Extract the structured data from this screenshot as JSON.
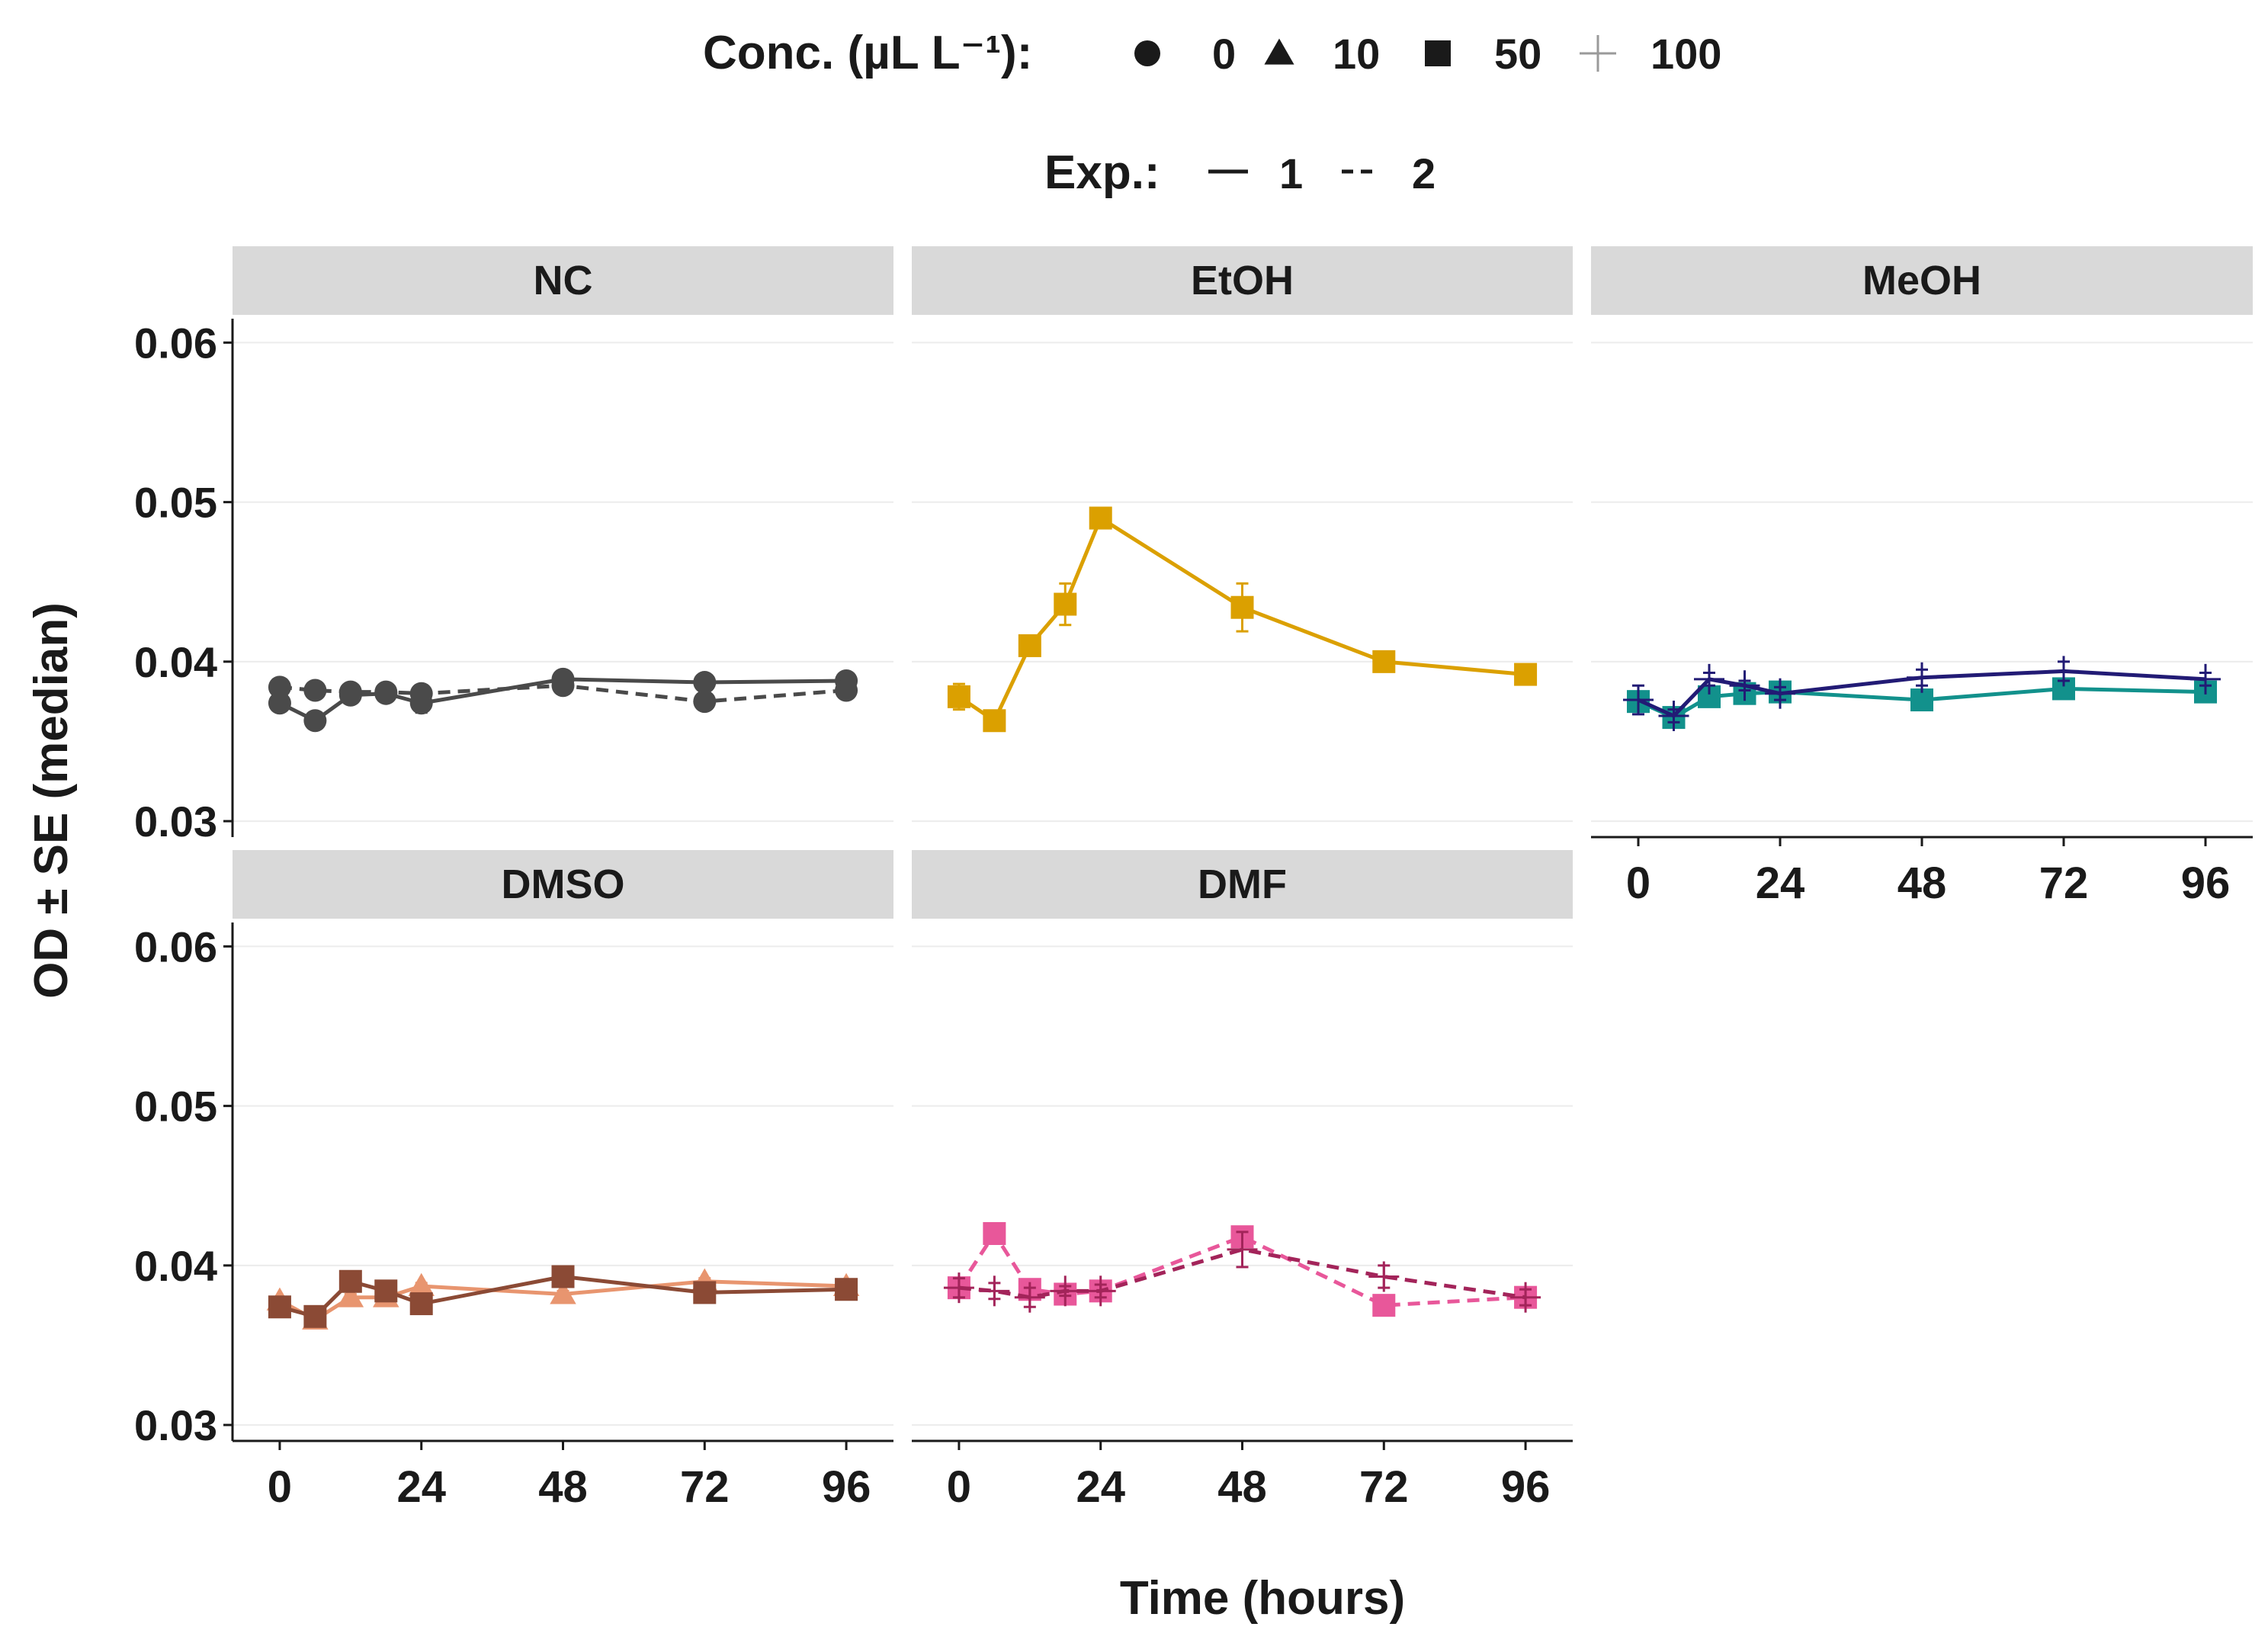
{
  "chart_data": {
    "type": "line",
    "ylabel": "OD ± SE (median)",
    "xlabel": "Time (hours)",
    "xlim": [
      -8,
      104
    ],
    "ylim": [
      0.029,
      0.0615
    ],
    "xticks": [
      0,
      24,
      48,
      72,
      96
    ],
    "xtick_labels": [
      "0",
      "24",
      "48",
      "72",
      "96"
    ],
    "yticks": [
      0.03,
      0.04,
      0.05,
      0.06
    ],
    "ytick_labels": [
      "0.03",
      "0.04",
      "0.05",
      "0.06"
    ],
    "legend": {
      "position": "top",
      "conc_title": "Conc. (µL L⁻¹):",
      "conc_items": [
        {
          "shape": "circle",
          "label": "0"
        },
        {
          "shape": "triangle",
          "label": "10"
        },
        {
          "shape": "square",
          "label": "50"
        },
        {
          "shape": "plus",
          "label": "100"
        }
      ],
      "exp_title": "Exp.:",
      "exp_items": [
        {
          "dash": "solid",
          "label": "1"
        },
        {
          "dash": "dashed",
          "label": "2"
        }
      ]
    },
    "panels": [
      {
        "name": "NC",
        "series": [
          {
            "exp": "1",
            "conc": "0",
            "shape": "circle",
            "dash": "solid",
            "color": "#4a4a4a",
            "x": [
              0,
              6,
              12,
              18,
              24,
              48,
              72,
              96
            ],
            "y": [
              0.0374,
              0.0363,
              0.0379,
              0.038,
              0.0374,
              0.0389,
              0.0387,
              0.0388
            ],
            "se": [
              0.0002,
              0.0002,
              0.0002,
              0.0002,
              0.0006,
              0.0002,
              0.0002,
              0.0002
            ]
          },
          {
            "exp": "2",
            "conc": "0",
            "shape": "circle",
            "dash": "dashed",
            "color": "#4a4a4a",
            "x": [
              0,
              6,
              12,
              18,
              24,
              48,
              72,
              96
            ],
            "y": [
              0.0384,
              0.0382,
              0.0381,
              0.0381,
              0.038,
              0.0385,
              0.0375,
              0.0382
            ],
            "se": [
              0.0002,
              0.0002,
              0.0002,
              0.0002,
              0.0002,
              0.0002,
              0.0002,
              0.0002
            ]
          }
        ]
      },
      {
        "name": "EtOH",
        "series": [
          {
            "exp": "1",
            "conc": "50",
            "shape": "square",
            "dash": "solid",
            "color": "#dba000",
            "x": [
              0,
              6,
              12,
              18,
              24,
              48,
              72,
              96
            ],
            "y": [
              0.0378,
              0.0363,
              0.041,
              0.0436,
              0.049,
              0.0434,
              0.04,
              0.0392
            ],
            "se": [
              0.0008,
              0.0002,
              0.0003,
              0.0013,
              0.0002,
              0.0015,
              0.0002,
              0.0002
            ]
          }
        ]
      },
      {
        "name": "MeOH",
        "series": [
          {
            "exp": "1",
            "conc": "50",
            "shape": "square",
            "dash": "solid",
            "color": "#12918c",
            "x": [
              0,
              6,
              12,
              18,
              24,
              48,
              72,
              96
            ],
            "y": [
              0.0375,
              0.0365,
              0.0378,
              0.038,
              0.0381,
              0.0376,
              0.0383,
              0.0381
            ],
            "se": [
              0.0004,
              0.0002,
              0.0002,
              0.0002,
              0.0002,
              0.0002,
              0.0002,
              0.0002
            ]
          },
          {
            "exp": "1",
            "conc": "100",
            "shape": "plus",
            "dash": "solid",
            "color": "#221b75",
            "x": [
              0,
              6,
              12,
              18,
              24,
              48,
              72,
              96
            ],
            "y": [
              0.0376,
              0.0366,
              0.0389,
              0.0385,
              0.038,
              0.039,
              0.0394,
              0.0389
            ],
            "se": [
              0.0009,
              0.0004,
              0.0004,
              0.0003,
              0.0004,
              0.0005,
              0.0006,
              0.0004
            ]
          }
        ]
      },
      {
        "name": "DMSO",
        "series": [
          {
            "exp": "1",
            "conc": "10",
            "shape": "triangle",
            "dash": "solid",
            "color": "#e8956f",
            "x": [
              0,
              6,
              12,
              18,
              24,
              48,
              72,
              96
            ],
            "y": [
              0.0378,
              0.0366,
              0.038,
              0.038,
              0.0387,
              0.0382,
              0.039,
              0.0387
            ],
            "se": [
              0.0002,
              0.0002,
              0.0002,
              0.0002,
              0.0002,
              0.0002,
              0.0002,
              0.0002
            ]
          },
          {
            "exp": "1",
            "conc": "50",
            "shape": "square",
            "dash": "solid",
            "color": "#8b4a35",
            "x": [
              0,
              6,
              12,
              18,
              24,
              48,
              72,
              96
            ],
            "y": [
              0.0374,
              0.0368,
              0.039,
              0.0384,
              0.0376,
              0.0393,
              0.0383,
              0.0385
            ],
            "se": [
              0.0002,
              0.0002,
              0.0002,
              0.0002,
              0.0002,
              0.0002,
              0.0002,
              0.0002
            ]
          }
        ]
      },
      {
        "name": "DMF",
        "series": [
          {
            "exp": "2",
            "conc": "50",
            "shape": "square",
            "dash": "dashed",
            "color": "#e8579a",
            "x": [
              0,
              6,
              12,
              18,
              24,
              48,
              72,
              96
            ],
            "y": [
              0.0386,
              0.042,
              0.0385,
              0.0382,
              0.0384,
              0.0418,
              0.0375,
              0.038
            ],
            "se": [
              0.0004,
              0.0003,
              0.0003,
              0.0002,
              0.0002,
              0.0002,
              0.0002,
              0.0002
            ]
          },
          {
            "exp": "2",
            "conc": "100",
            "shape": "plus",
            "dash": "dashed",
            "color": "#a3245a",
            "x": [
              0,
              6,
              12,
              18,
              24,
              48,
              72,
              96
            ],
            "y": [
              0.0386,
              0.0384,
              0.038,
              0.0384,
              0.0384,
              0.041,
              0.0393,
              0.038
            ],
            "se": [
              0.0006,
              0.0005,
              0.0006,
              0.0003,
              0.0004,
              0.0011,
              0.0007,
              0.0005
            ]
          }
        ]
      }
    ]
  }
}
